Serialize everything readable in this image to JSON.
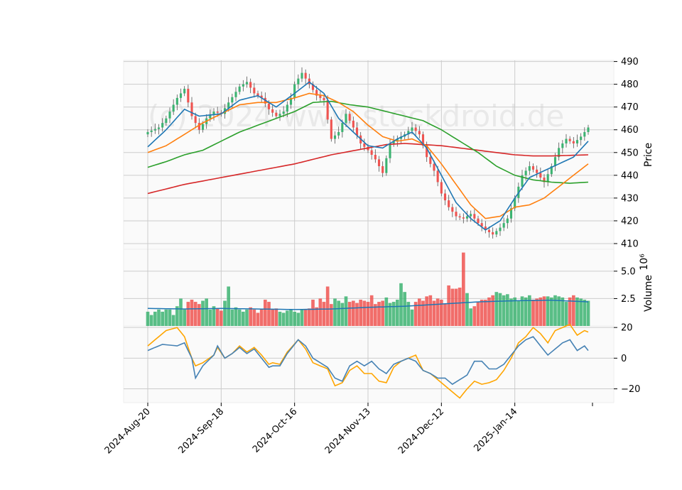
{
  "chart_data": {
    "type": "candlestick",
    "watermark": "(c) 2024 www.stockdroid.de",
    "x_tick_labels": [
      "2024-Aug-20",
      "2024-Sep-18",
      "2024-Oct-16",
      "2024-Nov-13",
      "2024-Dec-12",
      "2025-Jan-14"
    ],
    "x_tick_indices": [
      0,
      20,
      40,
      60,
      80,
      100
    ],
    "colors": {
      "up": "#26a69a",
      "up_candle": "#3cb371",
      "down": "#ef5350",
      "ma1": "#1f77b4",
      "ma2": "#ff7f0e",
      "ma3": "#2ca02c",
      "ma4": "#d62728",
      "osc1": "#4682b4",
      "osc2": "#ffa500"
    },
    "price_panel": {
      "ylabel": "Price",
      "ylim": [
        407.5,
        490.5
      ],
      "yticks": [
        410,
        420,
        430,
        440,
        450,
        460,
        470,
        480,
        490
      ],
      "close_anchors": [
        [
          0,
          459
        ],
        [
          3,
          461
        ],
        [
          5,
          465
        ],
        [
          8,
          474
        ],
        [
          10,
          478
        ],
        [
          12,
          466
        ],
        [
          14,
          460
        ],
        [
          16,
          465
        ],
        [
          18,
          468
        ],
        [
          20,
          467
        ],
        [
          22,
          472
        ],
        [
          25,
          479
        ],
        [
          27,
          481
        ],
        [
          29,
          476
        ],
        [
          31,
          474
        ],
        [
          33,
          469
        ],
        [
          35,
          466
        ],
        [
          37,
          468
        ],
        [
          39,
          474
        ],
        [
          40,
          480
        ],
        [
          42,
          485
        ],
        [
          44,
          480
        ],
        [
          46,
          475
        ],
        [
          48,
          473
        ],
        [
          50,
          456
        ],
        [
          52,
          459
        ],
        [
          54,
          467
        ],
        [
          56,
          461
        ],
        [
          58,
          454
        ],
        [
          60,
          451
        ],
        [
          62,
          447
        ],
        [
          64,
          441
        ],
        [
          66,
          454
        ],
        [
          68,
          456
        ],
        [
          70,
          458
        ],
        [
          72,
          461
        ],
        [
          74,
          458
        ],
        [
          76,
          448
        ],
        [
          78,
          442
        ],
        [
          80,
          432
        ],
        [
          82,
          426
        ],
        [
          84,
          422
        ],
        [
          86,
          421
        ],
        [
          88,
          423
        ],
        [
          90,
          419
        ],
        [
          92,
          416
        ],
        [
          94,
          414
        ],
        [
          96,
          417
        ],
        [
          98,
          421
        ],
        [
          100,
          430
        ],
        [
          102,
          440
        ],
        [
          104,
          444
        ],
        [
          106,
          441
        ],
        [
          108,
          437
        ],
        [
          110,
          444
        ],
        [
          112,
          452
        ],
        [
          114,
          456
        ],
        [
          116,
          454
        ],
        [
          118,
          457
        ],
        [
          120,
          461
        ]
      ],
      "ma_anchors": {
        "ma1": [
          [
            0,
            452.5
          ],
          [
            5,
            460
          ],
          [
            10,
            469
          ],
          [
            14,
            466
          ],
          [
            20,
            467
          ],
          [
            25,
            473
          ],
          [
            30,
            475
          ],
          [
            35,
            470
          ],
          [
            40,
            476
          ],
          [
            44,
            481
          ],
          [
            48,
            476
          ],
          [
            52,
            465
          ],
          [
            56,
            459
          ],
          [
            60,
            453
          ],
          [
            64,
            452
          ],
          [
            68,
            456
          ],
          [
            72,
            459
          ],
          [
            76,
            452
          ],
          [
            80,
            440
          ],
          [
            84,
            428
          ],
          [
            88,
            421
          ],
          [
            92,
            416
          ],
          [
            96,
            420
          ],
          [
            100,
            430
          ],
          [
            104,
            439
          ],
          [
            108,
            442
          ],
          [
            112,
            445
          ],
          [
            116,
            448
          ],
          [
            120,
            455
          ]
        ],
        "ma2": [
          [
            0,
            450
          ],
          [
            5,
            453
          ],
          [
            10,
            458
          ],
          [
            15,
            463
          ],
          [
            20,
            467
          ],
          [
            25,
            471
          ],
          [
            30,
            472
          ],
          [
            35,
            472
          ],
          [
            40,
            474
          ],
          [
            44,
            476
          ],
          [
            48,
            475
          ],
          [
            52,
            472
          ],
          [
            56,
            468
          ],
          [
            60,
            462
          ],
          [
            64,
            457
          ],
          [
            68,
            455
          ],
          [
            72,
            456
          ],
          [
            76,
            453
          ],
          [
            80,
            445
          ],
          [
            84,
            436
          ],
          [
            88,
            427
          ],
          [
            92,
            421
          ],
          [
            96,
            422
          ],
          [
            100,
            426
          ],
          [
            104,
            427
          ],
          [
            108,
            430
          ],
          [
            112,
            435
          ],
          [
            116,
            440
          ],
          [
            120,
            445
          ]
        ],
        "ma3": [
          [
            0,
            443.5
          ],
          [
            5,
            446
          ],
          [
            10,
            449
          ],
          [
            15,
            451
          ],
          [
            20,
            455
          ],
          [
            25,
            459
          ],
          [
            30,
            462
          ],
          [
            35,
            465
          ],
          [
            40,
            468
          ],
          [
            45,
            472
          ],
          [
            50,
            472.5
          ],
          [
            55,
            471
          ],
          [
            60,
            470
          ],
          [
            65,
            468
          ],
          [
            70,
            466
          ],
          [
            75,
            464
          ],
          [
            80,
            460
          ],
          [
            85,
            455
          ],
          [
            90,
            450
          ],
          [
            95,
            444
          ],
          [
            100,
            440
          ],
          [
            105,
            438
          ],
          [
            110,
            437
          ],
          [
            115,
            436.5
          ],
          [
            120,
            437
          ]
        ],
        "ma4": [
          [
            0,
            432
          ],
          [
            10,
            436
          ],
          [
            20,
            439
          ],
          [
            30,
            442
          ],
          [
            40,
            445
          ],
          [
            50,
            449
          ],
          [
            60,
            452
          ],
          [
            65,
            453.5
          ],
          [
            70,
            454
          ],
          [
            75,
            453.5
          ],
          [
            80,
            453
          ],
          [
            85,
            452
          ],
          [
            90,
            451
          ],
          [
            95,
            450
          ],
          [
            100,
            449
          ],
          [
            105,
            448.5
          ],
          [
            110,
            448.5
          ],
          [
            120,
            449
          ]
        ]
      }
    },
    "volume_panel": {
      "ylabel": "Volume",
      "ylabel_exponent": "10^6",
      "ylim": [
        0.0,
        7.0
      ],
      "yticks": [
        2.5,
        5.0
      ],
      "ytick_labels": [
        "2.5",
        "5.0"
      ],
      "values": [
        1.3,
        1.0,
        1.3,
        1.5,
        1.3,
        1.5,
        1.5,
        1.0,
        1.8,
        2.5,
        1.5,
        2.2,
        2.4,
        2.2,
        2.0,
        2.3,
        2.5,
        1.5,
        1.8,
        1.6,
        1.4,
        2.3,
        3.6,
        1.5,
        1.7,
        1.5,
        1.3,
        1.5,
        1.7,
        1.5,
        1.2,
        1.5,
        2.4,
        2.2,
        1.5,
        1.6,
        1.3,
        1.2,
        1.4,
        1.5,
        1.3,
        1.2,
        1.5,
        1.5,
        1.6,
        2.4,
        1.7,
        2.5,
        2.2,
        3.6,
        2.0,
        2.5,
        2.3,
        2.1,
        2.7,
        2.2,
        2.3,
        2.1,
        2.4,
        2.3,
        2.2,
        2.8,
        2.0,
        2.2,
        2.3,
        2.6,
        2.1,
        2.2,
        2.4,
        3.9,
        3.1,
        2.2,
        1.5,
        2.2,
        2.5,
        2.3,
        2.7,
        2.8,
        2.3,
        2.5,
        2.4,
        2.0,
        3.7,
        3.4,
        3.4,
        3.5,
        6.7,
        3.0,
        1.6,
        1.8,
        2.2,
        2.4,
        2.4,
        2.6,
        2.8,
        3.1,
        3.0,
        2.8,
        2.9,
        2.5,
        2.6,
        2.3,
        2.7,
        2.6,
        2.8,
        2.4,
        2.5,
        2.6,
        2.7,
        2.7,
        2.6,
        2.8,
        2.7,
        2.6,
        2.2,
        2.6,
        2.8,
        2.6,
        2.5,
        2.4,
        2.3
      ],
      "ma_anchors": [
        [
          0,
          1.6
        ],
        [
          10,
          1.55
        ],
        [
          20,
          1.6
        ],
        [
          30,
          1.55
        ],
        [
          40,
          1.5
        ],
        [
          50,
          1.55
        ],
        [
          60,
          1.7
        ],
        [
          70,
          1.8
        ],
        [
          80,
          2.0
        ],
        [
          85,
          2.1
        ],
        [
          90,
          2.2
        ],
        [
          100,
          2.3
        ],
        [
          110,
          2.35
        ],
        [
          120,
          2.2
        ]
      ]
    },
    "oscillator_panel": {
      "ylim": [
        -29,
        21
      ],
      "yticks": [
        -20,
        0,
        20
      ],
      "ytick_labels": [
        "−20",
        "0",
        "20"
      ],
      "line1_anchors": [
        [
          0,
          5
        ],
        [
          4,
          9
        ],
        [
          8,
          8
        ],
        [
          10,
          10
        ],
        [
          12,
          0
        ],
        [
          13,
          -13
        ],
        [
          15,
          -5
        ],
        [
          18,
          2
        ],
        [
          19,
          8
        ],
        [
          21,
          0
        ],
        [
          23,
          3
        ],
        [
          25,
          7
        ],
        [
          27,
          3
        ],
        [
          29,
          6
        ],
        [
          31,
          0
        ],
        [
          33,
          -6
        ],
        [
          34,
          -5
        ],
        [
          36,
          -5
        ],
        [
          38,
          3
        ],
        [
          41,
          12
        ],
        [
          43,
          8
        ],
        [
          45,
          0
        ],
        [
          47,
          -3
        ],
        [
          49,
          -6
        ],
        [
          51,
          -13
        ],
        [
          53,
          -15
        ],
        [
          55,
          -5
        ],
        [
          57,
          -2
        ],
        [
          59,
          -5
        ],
        [
          61,
          -2
        ],
        [
          63,
          -7
        ],
        [
          65,
          -10
        ],
        [
          67,
          -4
        ],
        [
          69,
          -2
        ],
        [
          71,
          0
        ],
        [
          73,
          -2
        ],
        [
          75,
          -8
        ],
        [
          77,
          -10
        ],
        [
          79,
          -13
        ],
        [
          81,
          -13
        ],
        [
          83,
          -17
        ],
        [
          85,
          -14
        ],
        [
          87,
          -11
        ],
        [
          89,
          -2
        ],
        [
          91,
          -2
        ],
        [
          93,
          -7
        ],
        [
          95,
          -7
        ],
        [
          97,
          -4
        ],
        [
          99,
          2
        ],
        [
          101,
          8
        ],
        [
          103,
          12
        ],
        [
          105,
          14
        ],
        [
          107,
          8
        ],
        [
          109,
          2
        ],
        [
          111,
          6
        ],
        [
          113,
          10
        ],
        [
          115,
          12
        ],
        [
          117,
          5
        ],
        [
          119,
          8
        ],
        [
          120,
          5
        ]
      ],
      "line2_anchors": [
        [
          0,
          8
        ],
        [
          2,
          12
        ],
        [
          5,
          18
        ],
        [
          8,
          20
        ],
        [
          10,
          14
        ],
        [
          12,
          0
        ],
        [
          13,
          -5
        ],
        [
          15,
          -3
        ],
        [
          18,
          2
        ],
        [
          19,
          7
        ],
        [
          21,
          0
        ],
        [
          23,
          3
        ],
        [
          25,
          8
        ],
        [
          27,
          4
        ],
        [
          29,
          7
        ],
        [
          31,
          2
        ],
        [
          33,
          -4
        ],
        [
          34,
          -3
        ],
        [
          36,
          -4
        ],
        [
          38,
          4
        ],
        [
          41,
          12
        ],
        [
          43,
          6
        ],
        [
          45,
          -3
        ],
        [
          47,
          -5
        ],
        [
          49,
          -7
        ],
        [
          51,
          -18
        ],
        [
          53,
          -16
        ],
        [
          55,
          -8
        ],
        [
          57,
          -5
        ],
        [
          59,
          -10
        ],
        [
          61,
          -10
        ],
        [
          63,
          -15
        ],
        [
          65,
          -16
        ],
        [
          67,
          -6
        ],
        [
          69,
          -2
        ],
        [
          71,
          0
        ],
        [
          73,
          2
        ],
        [
          75,
          -8
        ],
        [
          77,
          -10
        ],
        [
          79,
          -14
        ],
        [
          81,
          -18
        ],
        [
          83,
          -22
        ],
        [
          85,
          -26
        ],
        [
          87,
          -20
        ],
        [
          89,
          -15
        ],
        [
          91,
          -17
        ],
        [
          93,
          -16
        ],
        [
          95,
          -14
        ],
        [
          97,
          -8
        ],
        [
          99,
          0
        ],
        [
          101,
          10
        ],
        [
          103,
          14
        ],
        [
          105,
          20
        ],
        [
          107,
          16
        ],
        [
          109,
          10
        ],
        [
          111,
          18
        ],
        [
          113,
          20
        ],
        [
          115,
          22
        ],
        [
          117,
          15
        ],
        [
          119,
          18
        ],
        [
          120,
          17
        ]
      ]
    }
  }
}
